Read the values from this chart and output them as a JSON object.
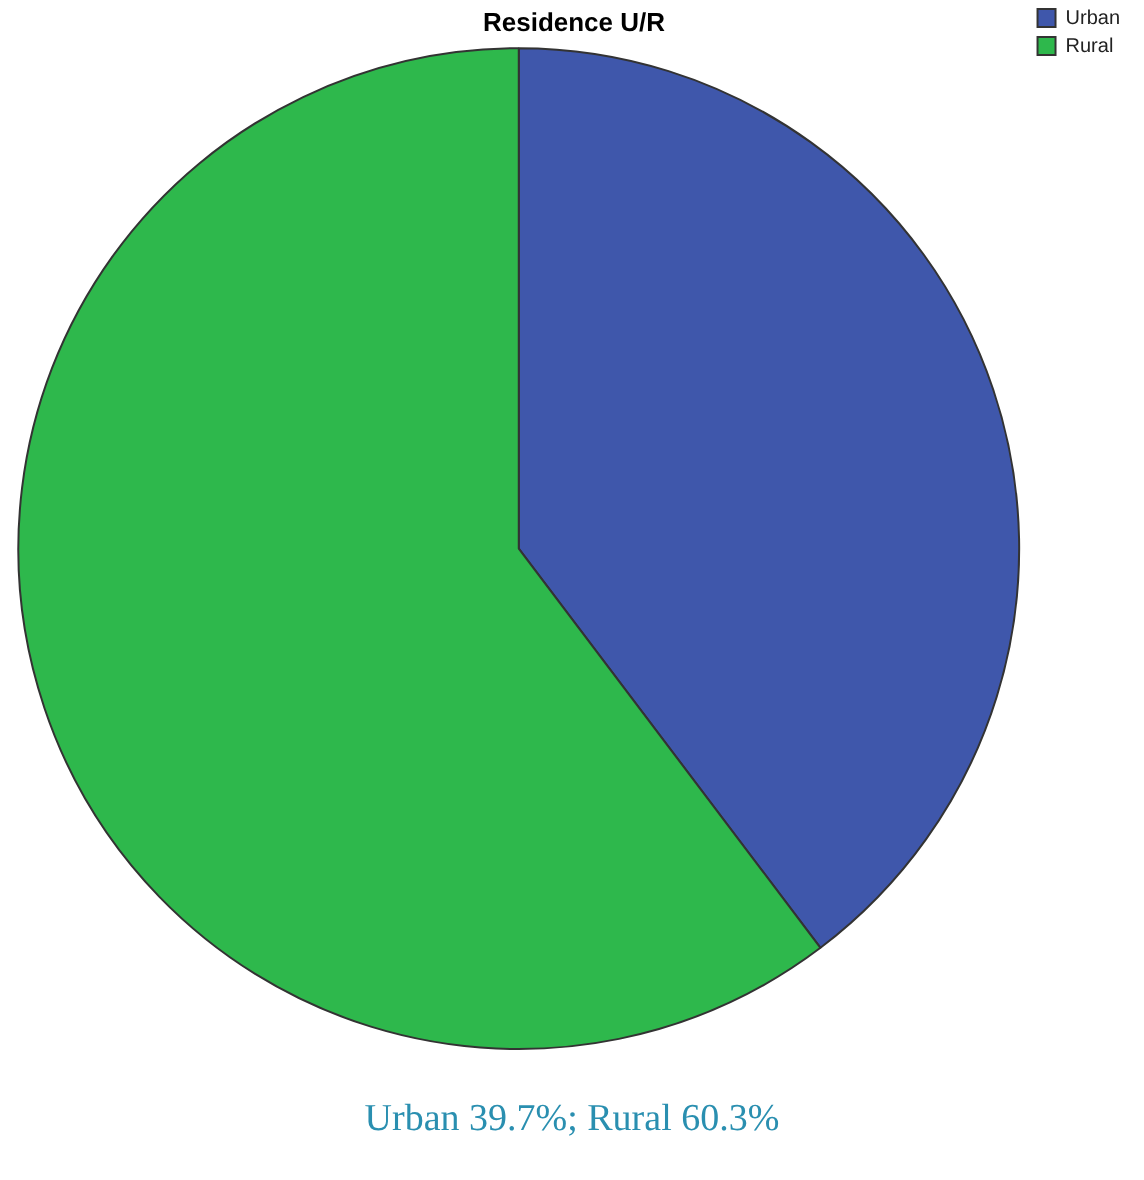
{
  "chart_data": {
    "type": "pie",
    "title": "Residence U/R",
    "categories": [
      "Urban",
      "Rural"
    ],
    "values": [
      39.7,
      60.3
    ],
    "colors": [
      "#3f57ab",
      "#2eb84c"
    ],
    "legend": "top right",
    "annotations": [
      "Urban 39.7%; Rural 60.3%"
    ]
  }
}
